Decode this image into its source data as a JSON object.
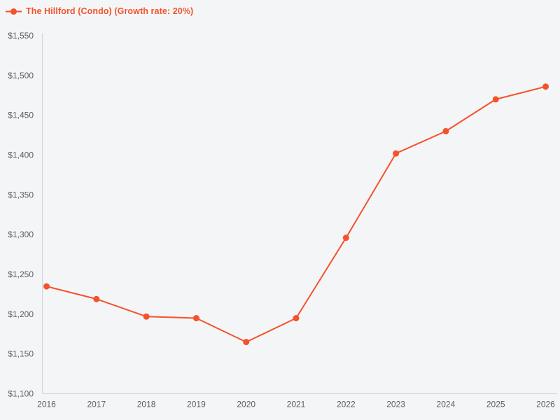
{
  "legend": {
    "label": "The Hillford (Condo) (Growth rate: 20%)"
  },
  "chart_data": {
    "type": "line",
    "title": "The Hillford (Condo) (Growth rate: 20%)",
    "series_name": "The Hillford (Condo)",
    "growth_rate_label": "20%",
    "x": [
      2016,
      2017,
      2018,
      2019,
      2020,
      2021,
      2022,
      2023,
      2024,
      2025,
      2026
    ],
    "x_tick_labels": [
      "2016",
      "2017",
      "2018",
      "2019",
      "2020",
      "2021",
      "2022",
      "2023",
      "2024",
      "2025",
      "2026"
    ],
    "series": [
      {
        "name": "The Hillford (Condo) (Growth rate: 20%)",
        "values": [
          1235,
          1219,
          1197,
          1195,
          1165,
          1195,
          1296,
          1402,
          1430,
          1470,
          1486
        ]
      }
    ],
    "xlabel": "",
    "ylabel": "",
    "ylim": [
      1100,
      1550
    ],
    "y_tick_step": 50,
    "y_tick_labels": [
      "$1,100",
      "$1,150",
      "$1,200",
      "$1,250",
      "$1,300",
      "$1,350",
      "$1,400",
      "$1,450",
      "$1,500",
      "$1,550"
    ],
    "grid": false,
    "legend_position": "top-left",
    "colors": {
      "series": "#f4522b",
      "background": "#f4f5f7",
      "axis_line": "#ccd4e3",
      "tick_label": "#585d63"
    }
  }
}
